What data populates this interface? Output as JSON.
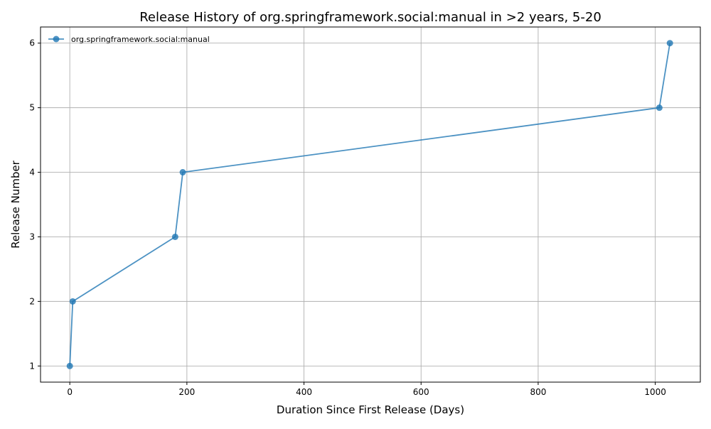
{
  "chart_data": {
    "type": "line",
    "title": "Release History of org.springframework.social:manual in >2 years, 5-20",
    "xlabel": "Duration Since First Release (Days)",
    "ylabel": "Release Number",
    "xlim": [
      -50,
      1077
    ],
    "ylim": [
      0.75,
      6.25
    ],
    "xticks": [
      0,
      200,
      400,
      600,
      800,
      1000
    ],
    "yticks": [
      1,
      2,
      3,
      4,
      5,
      6
    ],
    "grid": true,
    "legend_position": "top-left",
    "series": [
      {
        "name": "org.springframework.social:manual",
        "color": "#1f77b4",
        "marker": "circle",
        "x": [
          0,
          5,
          180,
          193,
          1007,
          1025
        ],
        "y": [
          1,
          2,
          3,
          4,
          5,
          6
        ]
      }
    ]
  }
}
